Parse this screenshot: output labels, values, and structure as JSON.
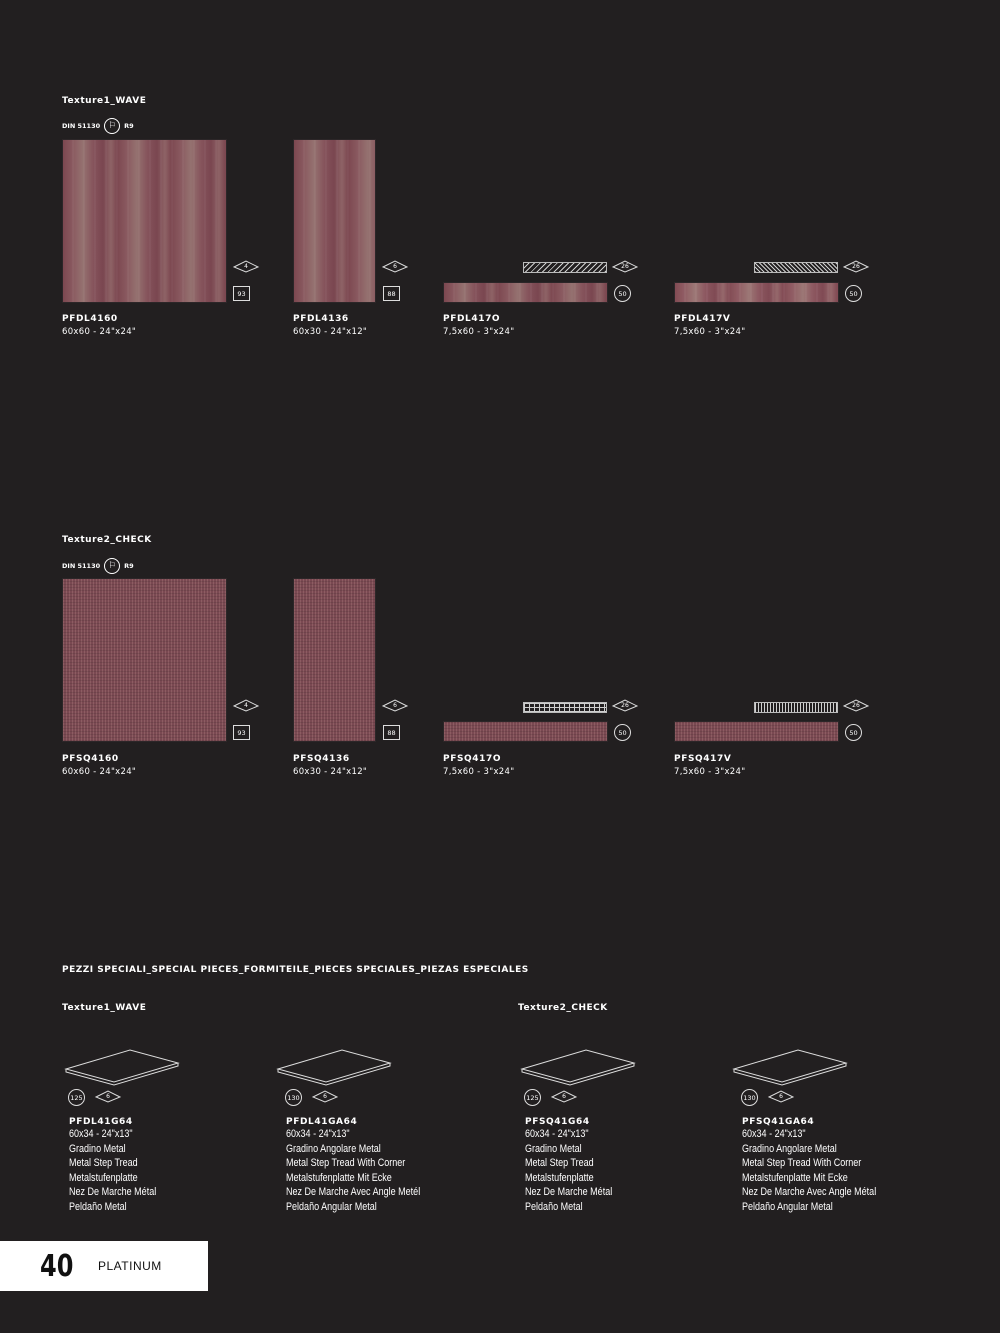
{
  "sections": {
    "wave_title": "Texture1_WAVE",
    "check_title": "Texture2_CHECK",
    "din_label": "DIN 51130",
    "din_rating": "R9"
  },
  "wave_products": [
    {
      "code": "PFDL4160",
      "size": "60x60 - 24\"x24\"",
      "pack": "4",
      "count": "93"
    },
    {
      "code": "PFDL4136",
      "size": "60x30 - 24\"x12\"",
      "pack": "6",
      "count": "88"
    },
    {
      "code": "PFDL417O",
      "size": "7,5x60 - 3\"x24\"",
      "pack": "26",
      "count": "50"
    },
    {
      "code": "PFDL417V",
      "size": "7,5x60 - 3\"x24\"",
      "pack": "26",
      "count": "50"
    }
  ],
  "check_products": [
    {
      "code": "PFSQ4160",
      "size": "60x60 - 24\"x24\"",
      "pack": "4",
      "count": "93"
    },
    {
      "code": "PFSQ4136",
      "size": "60x30 - 24\"x12\"",
      "pack": "6",
      "count": "88"
    },
    {
      "code": "PFSQ417O",
      "size": "7,5x60 - 3\"x24\"",
      "pack": "26",
      "count": "50"
    },
    {
      "code": "PFSQ417V",
      "size": "7,5x60 - 3\"x24\"",
      "pack": "26",
      "count": "50"
    }
  ],
  "special": {
    "heading": "PEZZI SPECIALI_SPECIAL PIECES_FORMITEILE_PIECES SPECIALES_PIEZAS ESPECIALES",
    "wave_title": "Texture1_WAVE",
    "check_title": "Texture2_CHECK",
    "items": [
      {
        "count": "125",
        "pack": "6",
        "code": "PFDL41G64",
        "size": "60x34 - 24\"x13\"",
        "l1": "Gradino Metal",
        "l2": "Metal Step Tread",
        "l3": "Metalstufenplatte",
        "l4": "Nez De Marche Métal",
        "l5": "Peldaño Metal"
      },
      {
        "count": "130",
        "pack": "6",
        "code": "PFDL41GA64",
        "size": "60x34 - 24\"x13\"",
        "l1": "Gradino Angolare Metal",
        "l2": "Metal Step Tread With Corner",
        "l3": "Metalstufenplatte Mit Ecke",
        "l4": "Nez De Marche Avec Angle Metél",
        "l5": "Peldaño Angular Metal"
      },
      {
        "count": "125",
        "pack": "6",
        "code": "PFSQ41G64",
        "size": "60x34 - 24\"x13\"",
        "l1": "Gradino Metal",
        "l2": "Metal Step Tread",
        "l3": "Metalstufenplatte",
        "l4": "Nez De Marche Métal",
        "l5": "Peldaño Metal"
      },
      {
        "count": "130",
        "pack": "6",
        "code": "PFSQ41GA64",
        "size": "60x34 - 24\"x13\"",
        "l1": "Gradino Angolare Metal",
        "l2": "Metal Step Tread With Corner",
        "l3": "Metalstufenplatte Mit Ecke",
        "l4": "Nez De Marche Avec Angle Métal",
        "l5": "Peldaño Angular Metal"
      }
    ]
  },
  "footer": {
    "page_number": "40",
    "brand": "PLATINUM"
  },
  "colors": {
    "background": "#221f20",
    "tile_base": "#7c4750",
    "text": "#ffffff"
  }
}
